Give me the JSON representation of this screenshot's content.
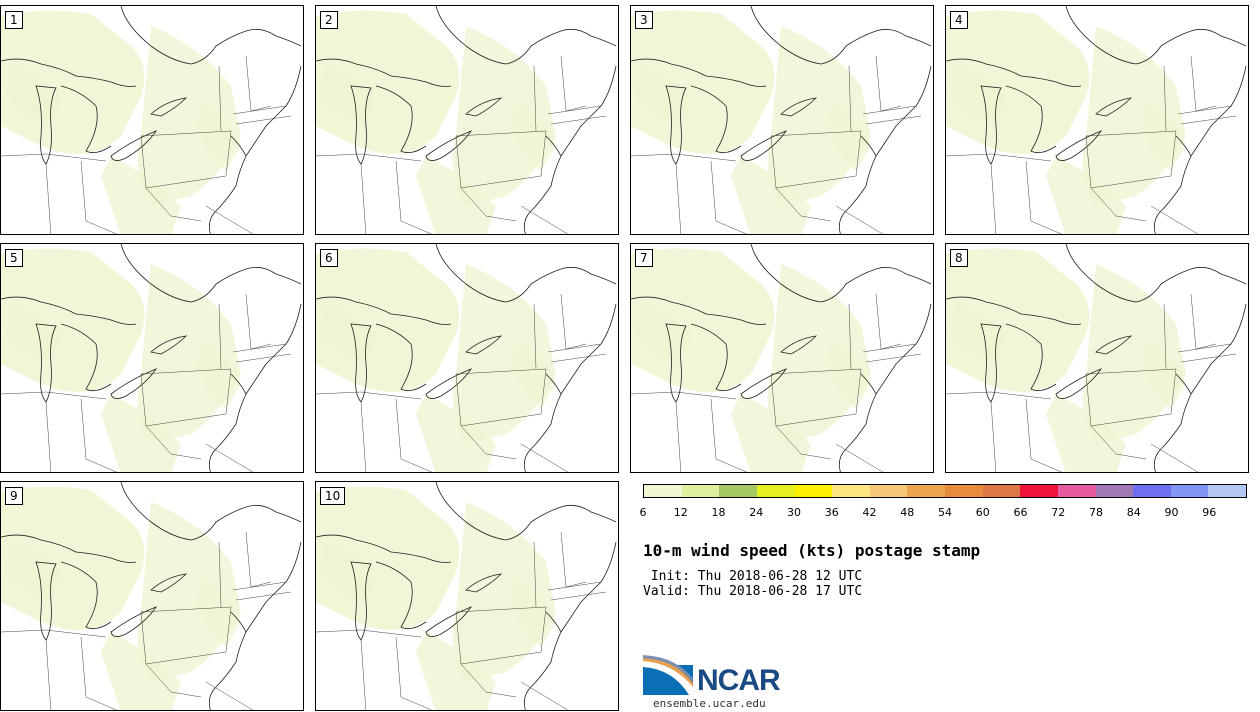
{
  "panels": [
    {
      "label": "1"
    },
    {
      "label": "2"
    },
    {
      "label": "3"
    },
    {
      "label": "4"
    },
    {
      "label": "5"
    },
    {
      "label": "6"
    },
    {
      "label": "7"
    },
    {
      "label": "8"
    },
    {
      "label": "9"
    },
    {
      "label": "10"
    }
  ],
  "colorbar": {
    "colors": [
      "#f0f5d2",
      "#dcf0a0",
      "#a5c864",
      "#e6f01e",
      "#fff000",
      "#ffe682",
      "#f5c878",
      "#eba550",
      "#e68c3c",
      "#dc7846",
      "#f0143c",
      "#e65aa0",
      "#a078b4",
      "#6e6ef0",
      "#8296f5",
      "#b4c8f5"
    ],
    "ticks": [
      "6",
      "12",
      "18",
      "24",
      "30",
      "36",
      "42",
      "48",
      "54",
      "60",
      "66",
      "72",
      "78",
      "84",
      "90",
      "96"
    ]
  },
  "title": "10-m wind speed (kts) postage stamp",
  "init": " Init: Thu 2018-06-28 12 UTC",
  "valid": "Valid: Thu 2018-06-28 17 UTC",
  "logo": {
    "text": "NCAR",
    "site": "ensemble.ucar.edu"
  }
}
